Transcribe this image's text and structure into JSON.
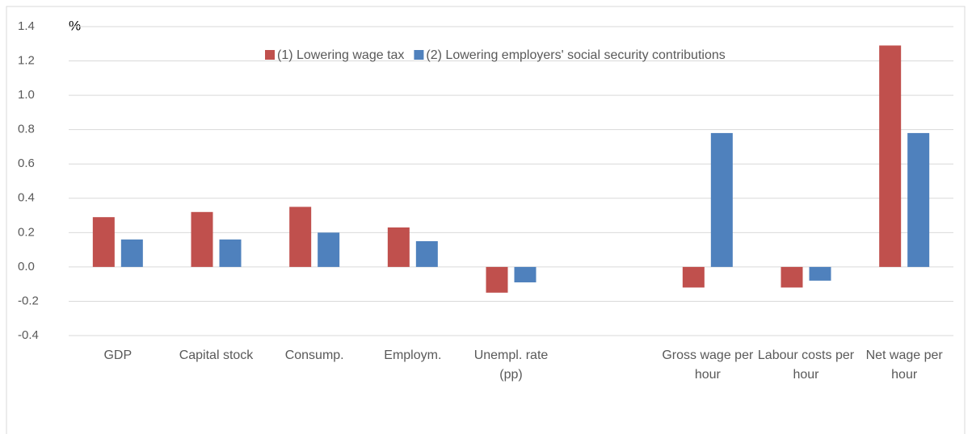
{
  "chart_data": {
    "type": "bar",
    "y_label": "%",
    "categories": [
      "GDP",
      "Capital stock",
      "Consump.",
      "Employm.",
      "Unempl. rate (pp)",
      null,
      "Gross wage per hour",
      "Labour costs per hour",
      "Net wage per hour"
    ],
    "series": [
      {
        "name": "(1) Lowering wage tax",
        "color": "#c0504d",
        "values": [
          0.29,
          0.32,
          0.35,
          0.23,
          -0.15,
          null,
          -0.12,
          -0.12,
          1.29
        ]
      },
      {
        "name": "(2) Lowering employers' social security contributions",
        "color": "#4f81bd",
        "values": [
          0.16,
          0.16,
          0.2,
          0.15,
          -0.09,
          null,
          0.78,
          -0.08,
          0.78
        ]
      }
    ],
    "ylim": [
      -0.4,
      1.4
    ],
    "yticks": [
      -0.4,
      -0.2,
      {
        "value": 0,
        "label": "0.0"
      },
      0.2,
      0.4,
      0.6,
      0.8,
      {
        "value": 1,
        "label": "1.0"
      },
      1.2,
      1.4
    ],
    "grid": true
  }
}
